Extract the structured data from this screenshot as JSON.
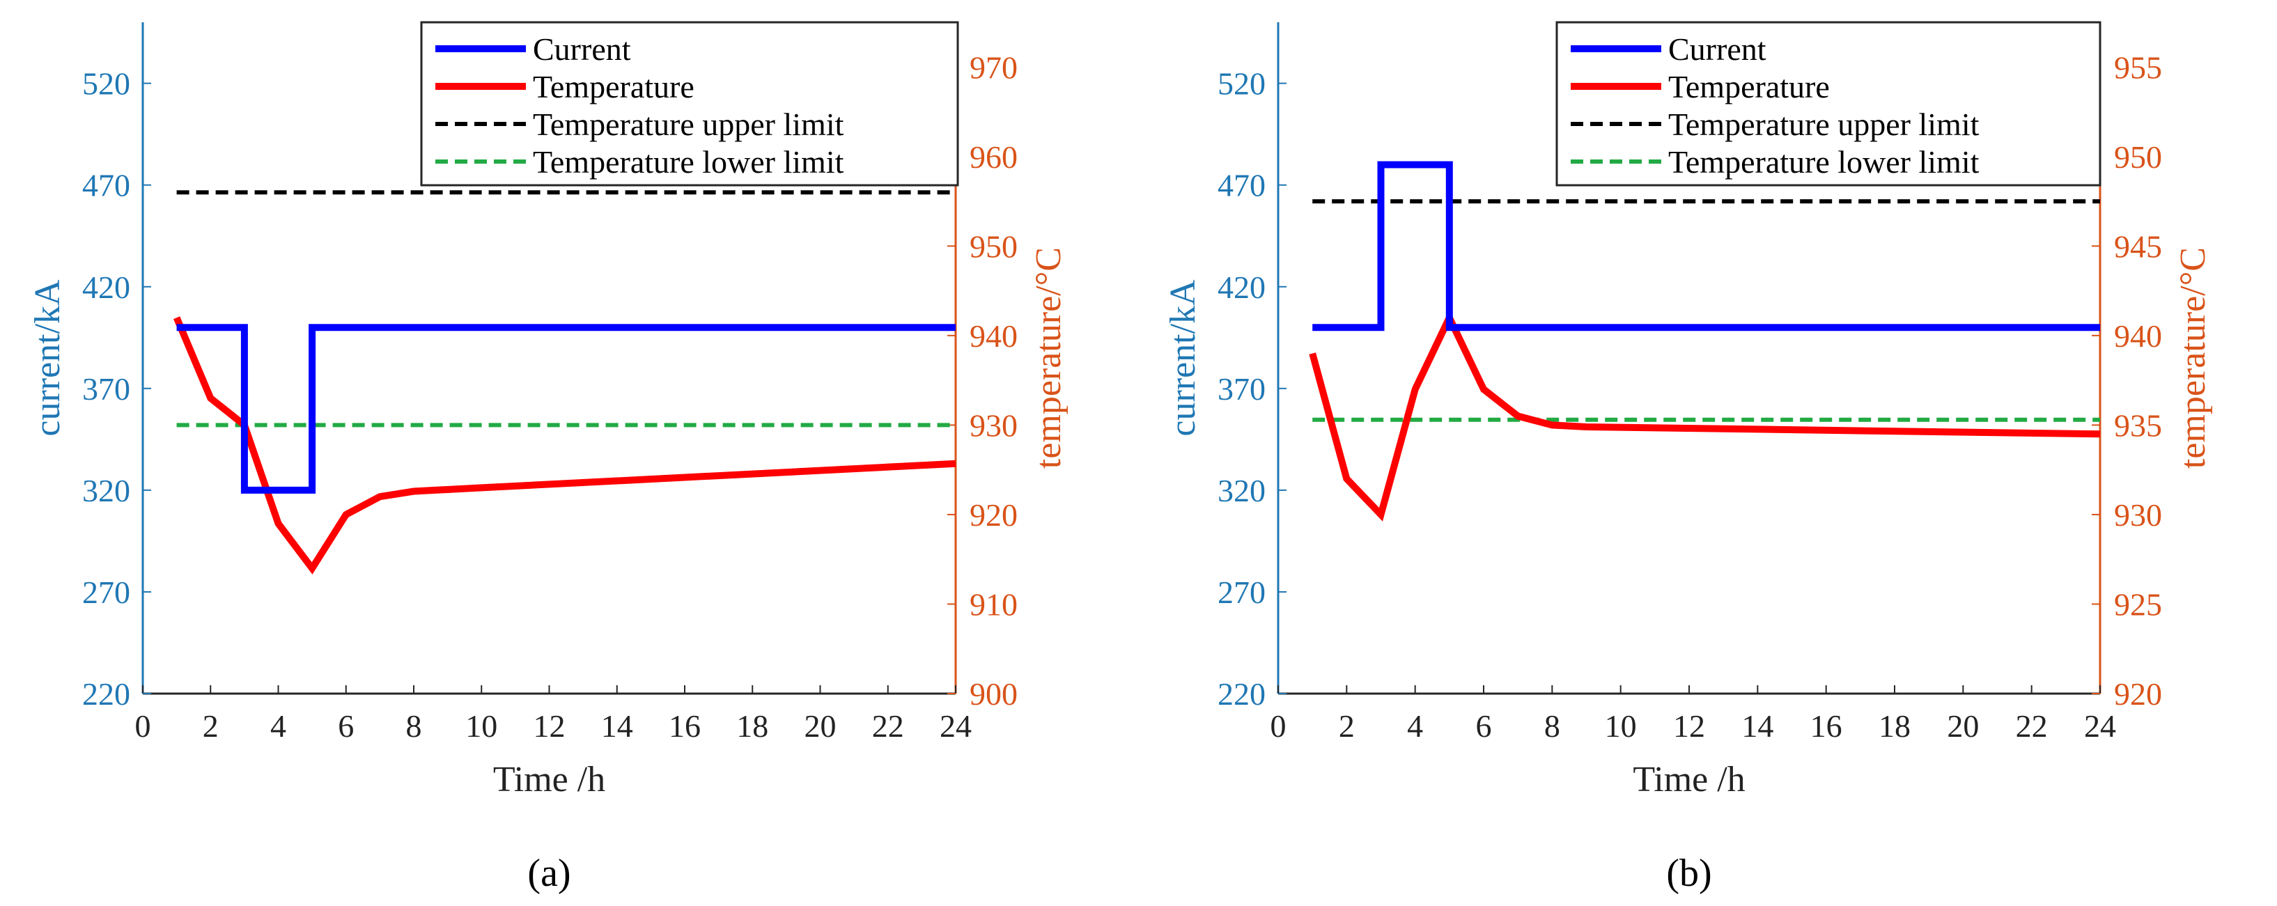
{
  "chart_data": [
    {
      "type": "line",
      "panel_label": "(a)",
      "xlabel": "Time /h",
      "ylabel_left": "current/kA",
      "ylabel_right": "temperature/°C",
      "xlim": [
        0,
        24
      ],
      "xticks": [
        0,
        2,
        4,
        6,
        8,
        10,
        12,
        14,
        16,
        18,
        20,
        22,
        24
      ],
      "ylim_left": [
        220,
        550
      ],
      "yticks_left": [
        220,
        270,
        320,
        370,
        420,
        470,
        520
      ],
      "ylim_right": [
        900,
        975
      ],
      "yticks_right": [
        900,
        910,
        920,
        930,
        940,
        950,
        960,
        970
      ],
      "legend": [
        "Current",
        "Temperature",
        "Temperature upper limit",
        "Temperature lower limit"
      ],
      "series": [
        {
          "name": "Current",
          "axis": "left",
          "color": "#0000ff",
          "style": "solid",
          "x": [
            1,
            3,
            3,
            5,
            5,
            24
          ],
          "y": [
            400,
            400,
            320,
            320,
            400,
            400
          ]
        },
        {
          "name": "Temperature",
          "axis": "right",
          "color": "#ff0000",
          "style": "solid",
          "x": [
            1,
            2,
            3,
            4,
            5,
            6,
            7,
            8,
            10,
            24
          ],
          "y": [
            942,
            933,
            930,
            919,
            914,
            920,
            922,
            922.6,
            923,
            925.7
          ]
        },
        {
          "name": "Temperature upper limit",
          "axis": "right",
          "color": "#000000",
          "style": "dashed",
          "x": [
            1,
            24
          ],
          "y": [
            956,
            956
          ]
        },
        {
          "name": "Temperature lower limit",
          "axis": "right",
          "color": "#22aa44",
          "style": "dashed",
          "x": [
            1,
            24
          ],
          "y": [
            930,
            930
          ]
        }
      ]
    },
    {
      "type": "line",
      "panel_label": "(b)",
      "xlabel": "Time /h",
      "ylabel_left": "current/kA",
      "ylabel_right": "temperature/°C",
      "xlim": [
        0,
        24
      ],
      "xticks": [
        0,
        2,
        4,
        6,
        8,
        10,
        12,
        14,
        16,
        18,
        20,
        22,
        24
      ],
      "ylim_left": [
        220,
        550
      ],
      "yticks_left": [
        220,
        270,
        320,
        370,
        420,
        470,
        520
      ],
      "ylim_right": [
        920,
        957.5
      ],
      "yticks_right": [
        920,
        925,
        930,
        935,
        940,
        945,
        950,
        955
      ],
      "legend": [
        "Current",
        "Temperature",
        "Temperature upper limit",
        "Temperature lower limit"
      ],
      "series": [
        {
          "name": "Current",
          "axis": "left",
          "color": "#0000ff",
          "style": "solid",
          "x": [
            1,
            3,
            3,
            5,
            5,
            24
          ],
          "y": [
            400,
            400,
            480,
            480,
            400,
            400
          ]
        },
        {
          "name": "Temperature",
          "axis": "right",
          "color": "#ff0000",
          "style": "solid",
          "x": [
            1,
            2,
            3,
            4,
            5,
            6,
            7,
            8,
            9,
            24
          ],
          "y": [
            939,
            932,
            930,
            937,
            941,
            937,
            935.5,
            935,
            934.9,
            934.5
          ]
        },
        {
          "name": "Temperature upper limit",
          "axis": "right",
          "color": "#000000",
          "style": "dashed",
          "x": [
            1,
            24
          ],
          "y": [
            947.5,
            947.5
          ]
        },
        {
          "name": "Temperature lower limit",
          "axis": "right",
          "color": "#22aa44",
          "style": "dashed",
          "x": [
            1,
            24
          ],
          "y": [
            935.3,
            935.3
          ]
        }
      ]
    }
  ]
}
